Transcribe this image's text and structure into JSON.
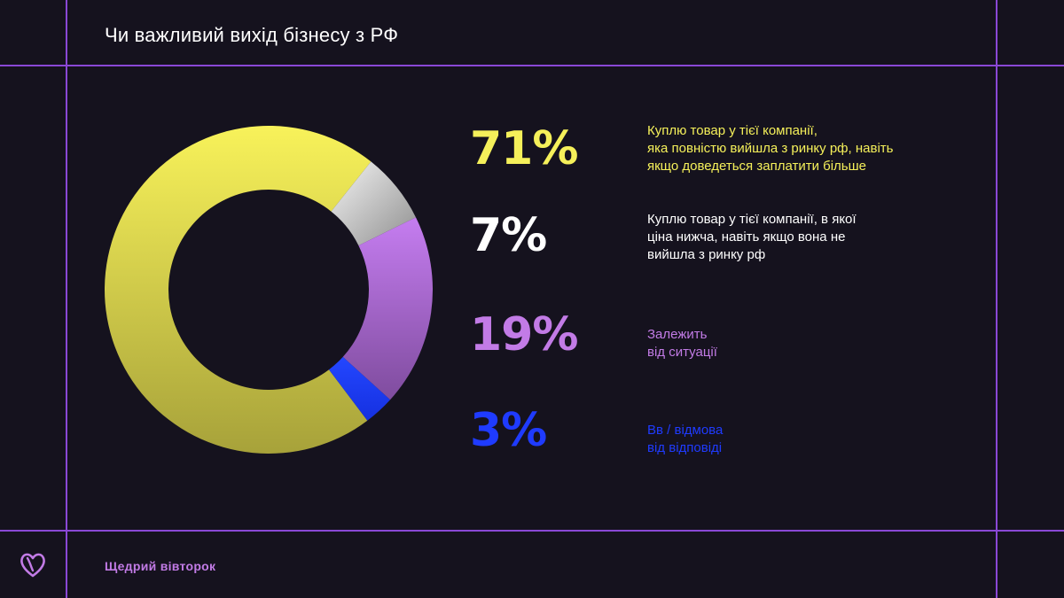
{
  "title": "Чи важливий вихід бізнесу з РФ",
  "chart_data": {
    "type": "pie",
    "donut": true,
    "slices": [
      {
        "value": 71,
        "label": "71%",
        "description": "Куплю товар у тієї компанії,\nяка повністю вийшла з ринку рф, навіть\nякщо доведеться заплатити більше",
        "color": "#f5f05a"
      },
      {
        "value": 7,
        "label": "7%",
        "description": "Куплю товар у тієї компанії, в якої\nціна нижча, навіть якщо вона не\nвийшла з ринку рф",
        "color": "#e0e0e0"
      },
      {
        "value": 19,
        "label": "19%",
        "description": "Залежить\nвід ситуації",
        "color": "#c27be6"
      },
      {
        "value": 3,
        "label": "3%",
        "description": "Вв / відмова\nвід відповіді",
        "color": "#1f3bff"
      }
    ],
    "legend_placement": "right"
  },
  "colors": {
    "background": "#15121e",
    "frame": "#8a48d6",
    "pct_white": "#ffffff"
  },
  "footer": {
    "brand": "Щедрий вівторок",
    "logo_icon": "heart-logo-icon"
  }
}
